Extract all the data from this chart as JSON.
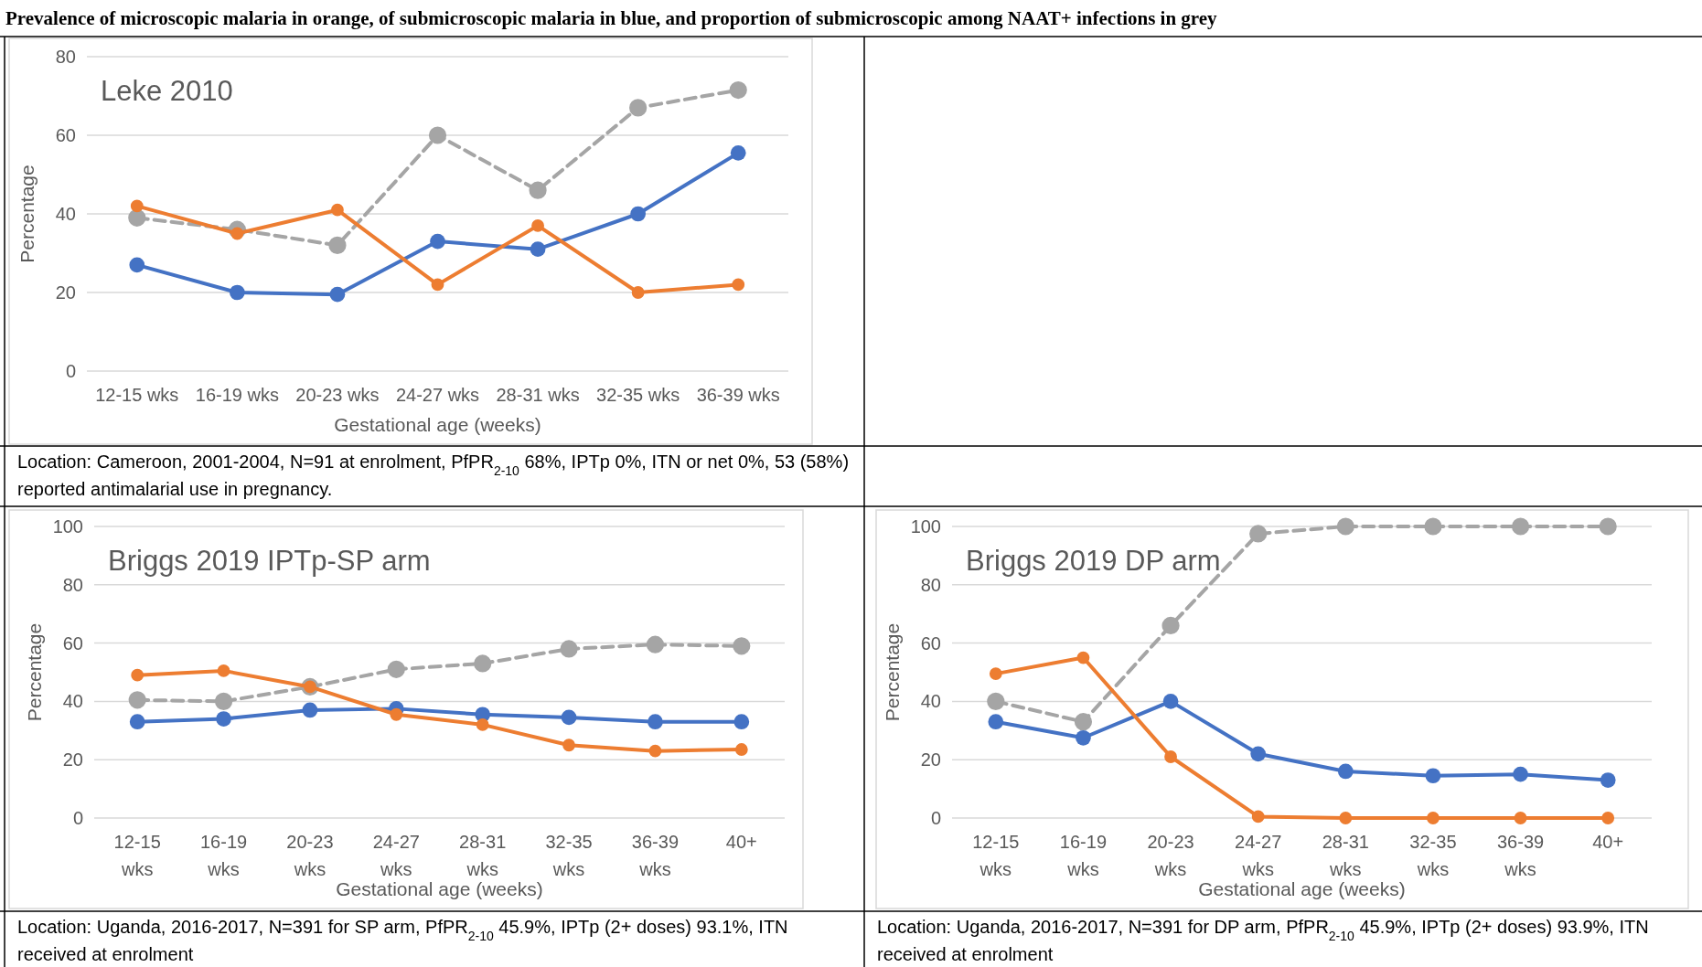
{
  "chart_data": [
    {
      "type": "line",
      "title": "Leke 2010",
      "xlabel": "Gestational age (weeks)",
      "ylabel": "Percentage",
      "categories": [
        "12-15 wks",
        "16-19 wks",
        "20-23 wks",
        "24-27 wks",
        "28-31 wks",
        "32-35 wks",
        "36-39 wks"
      ],
      "ylim": [
        0,
        80
      ],
      "yticks": [
        0,
        20,
        40,
        60,
        80
      ],
      "grid": "y",
      "marker": "circle",
      "series": [
        {
          "color": "#a5a5a5",
          "line_style": "dashed",
          "values": [
            39,
            36,
            32,
            60,
            46,
            67,
            71.5
          ]
        },
        {
          "color": "#4472c4",
          "values": [
            27,
            20,
            19.5,
            33,
            31,
            40,
            55.5
          ]
        },
        {
          "color": "#ed7d31",
          "values": [
            42,
            35,
            41,
            22,
            37,
            20,
            22
          ]
        }
      ],
      "annotations": [
        "Prevalence of microscopic malaria in orange, of submicroscopic malaria in blue, and proportion of submicroscopic among NAAT+ infections in grey",
        "Location: Cameroon, 2001-2004, N=91 at enrolment, PfPR$_{2-10}$ 68%, IPTp 0%, ITN or net 0%, 53 (58%) reported antimalarial use in pregnancy."
      ]
    },
    {
      "type": "line",
      "title": "Briggs 2019 IPTp-SP arm",
      "xlabel": "Gestational age (weeks)",
      "ylabel": "Percentage",
      "categories": [
        "12-15 wks",
        "16-19 wks",
        "20-23 wks",
        "24-27 wks",
        "28-31 wks",
        "32-35 wks",
        "36-39 wks",
        "40+"
      ],
      "ylim": [
        0,
        100
      ],
      "yticks": [
        0,
        20,
        40,
        60,
        80,
        100
      ],
      "grid": "y",
      "marker": "circle",
      "series": [
        {
          "color": "#a5a5a5",
          "line_style": "dashed",
          "values": [
            40.5,
            40,
            45,
            51,
            53,
            58,
            59.5,
            59
          ]
        },
        {
          "color": "#4472c4",
          "values": [
            33,
            34,
            37,
            37.5,
            35.5,
            34.5,
            33,
            33
          ]
        },
        {
          "color": "#ed7d31",
          "values": [
            49,
            50.5,
            45,
            35.5,
            32,
            25,
            23,
            23.5
          ]
        }
      ],
      "annotations": [
        "Location: Uganda, 2016-2017, N=391 for SP arm, PfPR$_{2-10}$ 45.9%, IPTp (2+ doses) 93.1%, ITN received at enrolment"
      ]
    },
    {
      "type": "line",
      "title": "Briggs 2019 DP arm",
      "xlabel": "Gestational age (weeks)",
      "ylabel": "Percentage",
      "categories": [
        "12-15 wks",
        "16-19 wks",
        "20-23 wks",
        "24-27 wks",
        "28-31 wks",
        "32-35 wks",
        "36-39 wks",
        "40+"
      ],
      "ylim": [
        0,
        100
      ],
      "yticks": [
        0,
        20,
        40,
        60,
        80,
        100
      ],
      "grid": "y",
      "marker": "circle",
      "series": [
        {
          "color": "#a5a5a5",
          "line_style": "dashed",
          "values": [
            40,
            33,
            66,
            97.5,
            100,
            100,
            100,
            100
          ]
        },
        {
          "color": "#4472c4",
          "values": [
            33,
            27.5,
            40,
            22,
            16,
            14.5,
            15,
            13
          ]
        },
        {
          "color": "#ed7d31",
          "values": [
            49.5,
            55,
            21,
            0.5,
            0,
            0,
            0,
            0
          ]
        }
      ],
      "annotations": [
        "Location: Uganda, 2016-2017, N=391 for DP arm, PfPR$_{2-10}$ 45.9%, IPTp (2+ doses) 93.9%, ITN received at enrolment"
      ]
    }
  ]
}
